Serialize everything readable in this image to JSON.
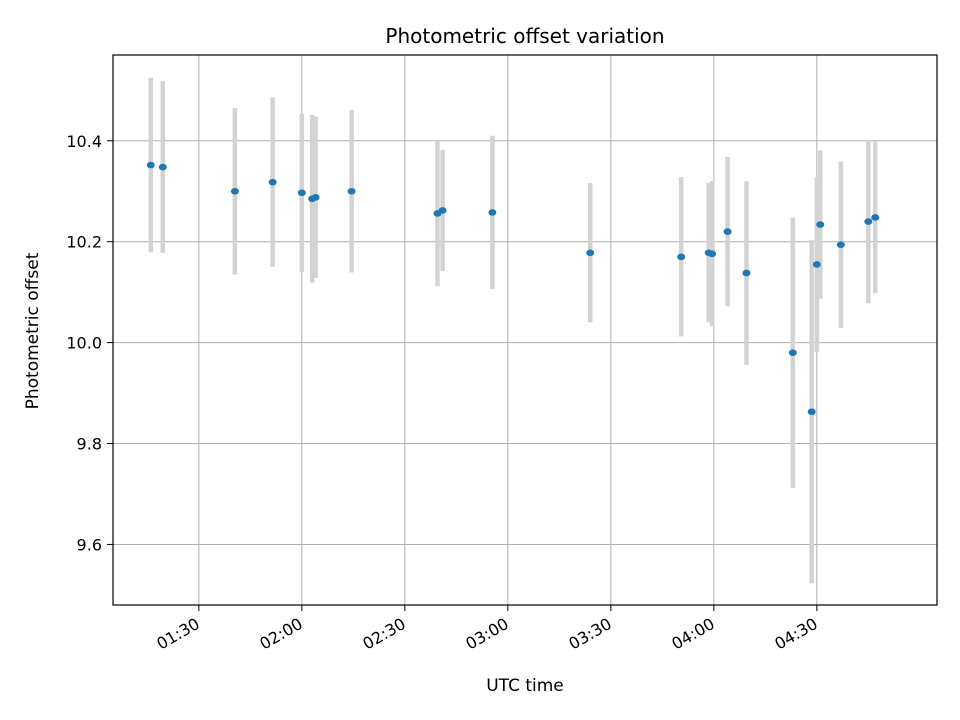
{
  "chart_data": {
    "type": "scatter",
    "title": "Photometric offset variation",
    "xlabel": "UTC time",
    "ylabel": "Photometric offset",
    "grid": true,
    "x_unit": "HH:MM (UTC)",
    "xlim": [
      "01:05",
      "05:05"
    ],
    "ylim": [
      9.48,
      10.57
    ],
    "x_ticks": [
      "01:30",
      "02:00",
      "02:30",
      "03:00",
      "03:30",
      "04:00",
      "04:30"
    ],
    "y_ticks": [
      9.6,
      9.8,
      10.0,
      10.2,
      10.4
    ],
    "y_tick_labels": [
      "9.6",
      "9.8",
      "10.0",
      "10.2",
      "10.4"
    ],
    "series": [
      {
        "color": "#1f77b4",
        "errorbar_color": "#d3d3d3",
        "points": [
          {
            "x": "01:16:00",
            "y": 10.352,
            "err": 0.173
          },
          {
            "x": "01:19:30",
            "y": 10.348,
            "err": 0.17
          },
          {
            "x": "01:40:30",
            "y": 10.3,
            "err": 0.165
          },
          {
            "x": "01:51:30",
            "y": 10.318,
            "err": 0.168
          },
          {
            "x": "02:00:00",
            "y": 10.297,
            "err": 0.157
          },
          {
            "x": "02:03:00",
            "y": 10.285,
            "err": 0.166
          },
          {
            "x": "02:04:00",
            "y": 10.288,
            "err": 0.16
          },
          {
            "x": "02:14:30",
            "y": 10.3,
            "err": 0.161
          },
          {
            "x": "02:39:30",
            "y": 10.256,
            "err": 0.144
          },
          {
            "x": "02:41:00",
            "y": 10.262,
            "err": 0.12
          },
          {
            "x": "02:55:30",
            "y": 10.258,
            "err": 0.152
          },
          {
            "x": "03:24:00",
            "y": 10.178,
            "err": 0.138
          },
          {
            "x": "03:50:30",
            "y": 10.17,
            "err": 0.158
          },
          {
            "x": "03:58:30",
            "y": 10.178,
            "err": 0.138
          },
          {
            "x": "03:59:30",
            "y": 10.176,
            "err": 0.144
          },
          {
            "x": "04:04:00",
            "y": 10.22,
            "err": 0.148
          },
          {
            "x": "04:09:30",
            "y": 10.138,
            "err": 0.182
          },
          {
            "x": "04:23:00",
            "y": 9.98,
            "err": 0.268
          },
          {
            "x": "04:28:30",
            "y": 9.863,
            "err": 0.34
          },
          {
            "x": "04:30:00",
            "y": 10.155,
            "err": 0.173
          },
          {
            "x": "04:31:00",
            "y": 10.234,
            "err": 0.147
          },
          {
            "x": "04:37:00",
            "y": 10.194,
            "err": 0.165
          },
          {
            "x": "04:45:00",
            "y": 10.24,
            "err": 0.162
          },
          {
            "x": "04:47:00",
            "y": 10.248,
            "err": 0.15
          }
        ]
      }
    ]
  }
}
